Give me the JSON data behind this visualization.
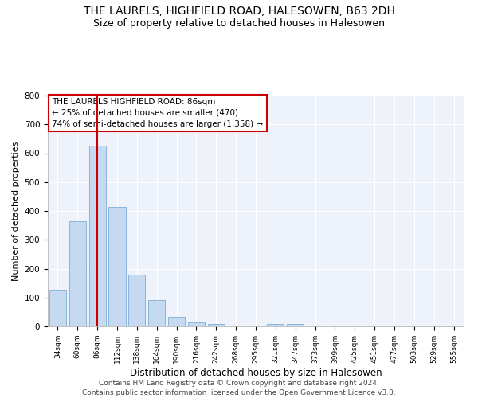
{
  "title1": "THE LAURELS, HIGHFIELD ROAD, HALESOWEN, B63 2DH",
  "title2": "Size of property relative to detached houses in Halesowen",
  "xlabel": "Distribution of detached houses by size in Halesowen",
  "ylabel": "Number of detached properties",
  "footer1": "Contains HM Land Registry data © Crown copyright and database right 2024.",
  "footer2": "Contains public sector information licensed under the Open Government Licence v3.0.",
  "annotation_line1": "THE LAURELS HIGHFIELD ROAD: 86sqm",
  "annotation_line2": "← 25% of detached houses are smaller (470)",
  "annotation_line3": "74% of semi-detached houses are larger (1,358) →",
  "bar_color": "#c5d9f0",
  "bar_edge_color": "#7aadd4",
  "vline_color": "#cc0000",
  "vline_x": 2,
  "categories": [
    "34sqm",
    "60sqm",
    "86sqm",
    "112sqm",
    "138sqm",
    "164sqm",
    "190sqm",
    "216sqm",
    "242sqm",
    "268sqm",
    "295sqm",
    "321sqm",
    "347sqm",
    "373sqm",
    "399sqm",
    "425sqm",
    "451sqm",
    "477sqm",
    "503sqm",
    "529sqm",
    "555sqm"
  ],
  "values": [
    127,
    365,
    627,
    415,
    178,
    90,
    32,
    15,
    9,
    0,
    0,
    9,
    9,
    0,
    0,
    0,
    0,
    0,
    0,
    0,
    0
  ],
  "ylim": [
    0,
    800
  ],
  "yticks": [
    0,
    100,
    200,
    300,
    400,
    500,
    600,
    700,
    800
  ],
  "background_color": "#edf2fb",
  "grid_color": "#ffffff",
  "title1_fontsize": 10,
  "title2_fontsize": 9,
  "xlabel_fontsize": 8.5,
  "ylabel_fontsize": 8,
  "annotation_fontsize": 7.5,
  "footer_fontsize": 6.5,
  "bar_width": 0.85
}
